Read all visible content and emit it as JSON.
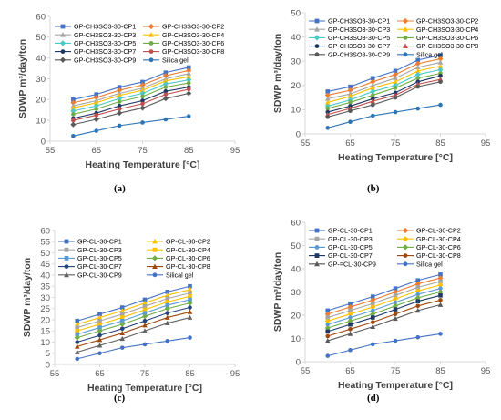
{
  "captions": [
    "(a)",
    "(b)",
    "(c)",
    "(d)"
  ],
  "chart_data": [
    {
      "type": "line",
      "xlabel": "Heating Temperature [°C]",
      "ylabel": "SDWP m³/day/ton",
      "xlim": [
        55,
        95
      ],
      "ylim": [
        0,
        60
      ],
      "xticks": [
        55,
        65,
        75,
        85,
        95
      ],
      "yticks": [
        0,
        10,
        20,
        30,
        40,
        50,
        60
      ],
      "grid": false,
      "legend": "top-left, 2 columns",
      "x": [
        60,
        65,
        70,
        75,
        80,
        85
      ],
      "series": [
        {
          "name": "GP-CH3SO3-30-CP1",
          "color": "#4472c4",
          "marker": "square",
          "values": [
            20,
            22.5,
            26,
            28.5,
            33,
            35.5
          ]
        },
        {
          "name": "GP-CH3SO3-30-CP2",
          "color": "#ed7d31",
          "marker": "diamond",
          "values": [
            18.5,
            21,
            24.5,
            27,
            31.5,
            34
          ]
        },
        {
          "name": "GP-CH3SO3-30-CP3",
          "color": "#a5a5a5",
          "marker": "triangle",
          "values": [
            17,
            19.5,
            23,
            25.5,
            30,
            32.5
          ]
        },
        {
          "name": "GP-CH3SO3-30-CP4",
          "color": "#ffc000",
          "marker": "triangle",
          "values": [
            16,
            18.5,
            22,
            24.5,
            29,
            31
          ]
        },
        {
          "name": "GP-CH3SO3-30-CP5",
          "color": "#4bc8c8",
          "marker": "diamond",
          "values": [
            14.5,
            17,
            20.5,
            23,
            27.5,
            29.5
          ]
        },
        {
          "name": "GP-CH3SO3-30-CP6",
          "color": "#70ad47",
          "marker": "circle",
          "values": [
            13,
            15.5,
            19,
            21.5,
            26,
            28
          ]
        },
        {
          "name": "GP-CH3SO3-30-CP7",
          "color": "#1f3864",
          "marker": "circle",
          "values": [
            11,
            13.5,
            17,
            19.5,
            24,
            26
          ]
        },
        {
          "name": "GP-CH3SO3-30-CP8",
          "color": "#c0504d",
          "marker": "circle",
          "values": [
            10,
            12.5,
            15.5,
            18,
            22.5,
            25
          ]
        },
        {
          "name": "GP-CH3SO3-30-CP9",
          "color": "#595959",
          "marker": "diamond",
          "values": [
            8,
            10.5,
            13.5,
            16,
            20.5,
            23
          ]
        },
        {
          "name": "Silica gel",
          "color": "#2e75b6",
          "marker": "circle",
          "values": [
            2.5,
            5,
            7.5,
            9,
            10.5,
            12
          ]
        }
      ]
    },
    {
      "type": "line",
      "xlabel": "Heating Temperature [°C]",
      "ylabel": "SDWP m³/day/ton",
      "xlim": [
        55,
        95
      ],
      "ylim": [
        0,
        50
      ],
      "xticks": [
        55,
        65,
        75,
        85,
        95
      ],
      "yticks": [
        0,
        10,
        20,
        30,
        40,
        50
      ],
      "grid": false,
      "legend": "top-left, 2 columns",
      "x": [
        60,
        65,
        70,
        75,
        80,
        85
      ],
      "series": [
        {
          "name": "GP-CH3SO3-30-CP1",
          "color": "#4472c4",
          "marker": "square",
          "values": [
            17.5,
            19.5,
            23,
            26,
            30.5,
            32.5
          ]
        },
        {
          "name": "GP-CH3SO3-30-CP2",
          "color": "#ed7d31",
          "marker": "diamond",
          "values": [
            16,
            18,
            21.5,
            24.5,
            29,
            31
          ]
        },
        {
          "name": "GP-CH3SO3-30-CP3",
          "color": "#a5a5a5",
          "marker": "triangle",
          "values": [
            14.5,
            16.5,
            20,
            23,
            27.5,
            29.5
          ]
        },
        {
          "name": "GP-CH3SO3-30-CP4",
          "color": "#ffc000",
          "marker": "triangle",
          "values": [
            13,
            15.5,
            19,
            21.5,
            26,
            28
          ]
        },
        {
          "name": "GP-CH3SO3-30-CP5",
          "color": "#4bc8c8",
          "marker": "diamond",
          "values": [
            11.5,
            14,
            17.5,
            20,
            24.5,
            26.5
          ]
        },
        {
          "name": "GP-CH3SO3-30-CP6",
          "color": "#70ad47",
          "marker": "circle",
          "values": [
            10.5,
            13,
            16,
            19,
            23,
            25
          ]
        },
        {
          "name": "GP-CH3SO3-30-CP7",
          "color": "#1f3864",
          "marker": "circle",
          "values": [
            9,
            11.5,
            14.5,
            17,
            21.5,
            24
          ]
        },
        {
          "name": "GP-CH3SO3-30-CP8",
          "color": "#c0504d",
          "marker": "triangle",
          "values": [
            8,
            10.5,
            13.5,
            16,
            20.5,
            22.5
          ]
        },
        {
          "name": "GP-CH3SO3-30-CP9",
          "color": "#595959",
          "marker": "circle",
          "values": [
            7,
            9.5,
            12,
            15,
            19.5,
            21.5
          ]
        },
        {
          "name": "Silica gel",
          "color": "#2e75b6",
          "marker": "circle",
          "values": [
            2.5,
            5,
            7.5,
            9,
            10.5,
            12
          ]
        }
      ]
    },
    {
      "type": "line",
      "xlabel": "Heating Temperature [°C]",
      "ylabel": "SDWP m³/day/ton",
      "xlim": [
        55,
        95
      ],
      "ylim": [
        0,
        60
      ],
      "xticks": [
        55,
        65,
        75,
        85,
        95
      ],
      "yticks": [
        0,
        5,
        10,
        15,
        20,
        25,
        30,
        35,
        40,
        45,
        50,
        55,
        60
      ],
      "grid": false,
      "legend": "top-left, 2 columns",
      "x": [
        60,
        65,
        70,
        75,
        80,
        85
      ],
      "series": [
        {
          "name": "GP-CL-30-CP1",
          "color": "#4472c4",
          "marker": "square",
          "values": [
            19.5,
            22.5,
            25.5,
            29,
            32.5,
            35
          ]
        },
        {
          "name": "GP-CL-30-CP2",
          "color": "#ffc000",
          "marker": "triangle",
          "values": [
            18,
            21,
            24,
            27.5,
            31,
            33.5
          ]
        },
        {
          "name": "GP-CL-30-CP3",
          "color": "#a5a5a5",
          "marker": "square",
          "values": [
            16.5,
            19.5,
            22.5,
            26,
            29.5,
            32
          ]
        },
        {
          "name": "GP-CL-30-CP4",
          "color": "#ffc000",
          "marker": "square",
          "values": [
            15,
            18,
            21,
            24.5,
            28,
            30.5
          ]
        },
        {
          "name": "GP-CL-30-CP5",
          "color": "#5b9bd5",
          "marker": "square",
          "values": [
            13.5,
            16.5,
            19.5,
            23,
            26.5,
            29
          ]
        },
        {
          "name": "GP-CL-30-CP6",
          "color": "#70ad47",
          "marker": "diamond",
          "values": [
            12,
            15,
            18,
            21.5,
            25,
            27.5
          ]
        },
        {
          "name": "GP-CL-30-CP7",
          "color": "#264478",
          "marker": "circle",
          "values": [
            10,
            13,
            16,
            19.5,
            23,
            25.5
          ]
        },
        {
          "name": "GP-CL-30-CP8",
          "color": "#9e480e",
          "marker": "triangle",
          "values": [
            8,
            11,
            14,
            17.5,
            21,
            23.5
          ]
        },
        {
          "name": "GP-CL-30-CP9",
          "color": "#636363",
          "marker": "triangle",
          "values": [
            5.5,
            8.5,
            11.5,
            15,
            18.5,
            21
          ]
        },
        {
          "name": "Silical gel",
          "color": "#4472c4",
          "marker": "circle",
          "values": [
            2.5,
            5,
            7.5,
            9,
            10.5,
            12
          ]
        }
      ]
    },
    {
      "type": "line",
      "xlabel": "Heating Temperature [°C]",
      "ylabel": "SDWP m³/day/ton",
      "xlim": [
        55,
        95
      ],
      "ylim": [
        0,
        60
      ],
      "xticks": [
        55,
        65,
        75,
        85,
        95
      ],
      "yticks": [
        0,
        10,
        20,
        30,
        40,
        50,
        60
      ],
      "grid": false,
      "legend": "top-left, 2 columns",
      "x": [
        60,
        65,
        70,
        75,
        80,
        85
      ],
      "series": [
        {
          "name": "GP-CL-30-CP1",
          "color": "#4472c4",
          "marker": "square",
          "values": [
            22,
            25,
            28,
            31.5,
            35,
            37.5
          ]
        },
        {
          "name": "GP-CL-30-CP2",
          "color": "#ed7d31",
          "marker": "diamond",
          "values": [
            20.5,
            23.5,
            26.5,
            30,
            33.5,
            36
          ]
        },
        {
          "name": "GP-CL-30-CP3",
          "color": "#a5a5a5",
          "marker": "square",
          "values": [
            19,
            22,
            25,
            28.5,
            32,
            34.5
          ]
        },
        {
          "name": "GP-CL-30-CP4",
          "color": "#ffc000",
          "marker": "diamond",
          "values": [
            17.5,
            20.5,
            23.5,
            27,
            30.5,
            33
          ]
        },
        {
          "name": "GP-CL-30-CP5",
          "color": "#5b9bd5",
          "marker": "circle",
          "values": [
            16,
            19,
            22,
            25.5,
            29,
            31.5
          ]
        },
        {
          "name": "GP-CL-30-CP6",
          "color": "#70ad47",
          "marker": "diamond",
          "values": [
            14.5,
            17.5,
            20.5,
            24,
            27.5,
            30
          ]
        },
        {
          "name": "GP-CL-30-CP7",
          "color": "#1f3864",
          "marker": "square",
          "values": [
            13,
            16,
            19,
            22.5,
            26,
            28.5
          ]
        },
        {
          "name": "GP-CL-30-CP8",
          "color": "#9e480e",
          "marker": "circle",
          "values": [
            11,
            14,
            17,
            20.5,
            24,
            26.5
          ]
        },
        {
          "name": "GP-=CL-30-CP9",
          "color": "#595959",
          "marker": "triangle",
          "values": [
            9,
            12,
            15,
            18.5,
            22,
            24.5
          ]
        },
        {
          "name": "Silica gel",
          "color": "#4472c4",
          "marker": "circle",
          "values": [
            2.5,
            5,
            7.5,
            9,
            10.5,
            12
          ]
        }
      ]
    }
  ]
}
